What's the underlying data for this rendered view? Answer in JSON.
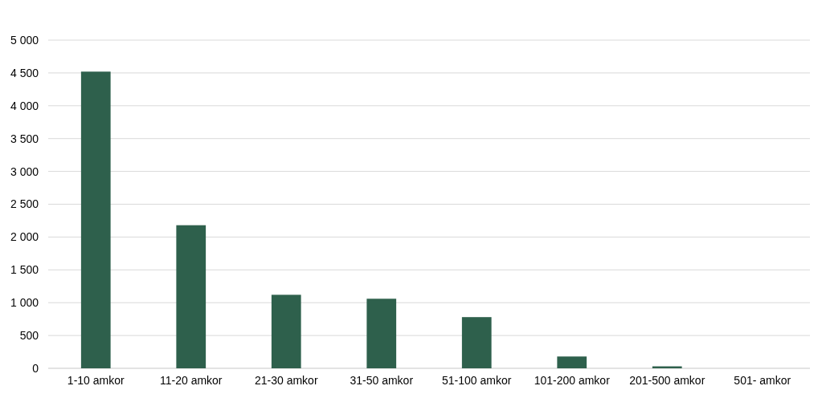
{
  "chart_data": {
    "type": "bar",
    "categories": [
      "1-10 amkor",
      "11-20 amkor",
      "21-30 amkor",
      "31-50 amkor",
      "51-100 amkor",
      "101-200 amkor",
      "201-500 amkor",
      "501- amkor"
    ],
    "values": [
      4520,
      2180,
      1120,
      1060,
      780,
      180,
      30,
      0
    ],
    "color": "#2e604c",
    "ylim": [
      0,
      5000
    ],
    "yticks": [
      {
        "value": 0,
        "label": "0"
      },
      {
        "value": 500,
        "label": "500"
      },
      {
        "value": 1000,
        "label": "1 000"
      },
      {
        "value": 1500,
        "label": "1 500"
      },
      {
        "value": 2000,
        "label": "2 000"
      },
      {
        "value": 2500,
        "label": "2 500"
      },
      {
        "value": 3000,
        "label": "3 000"
      },
      {
        "value": 3500,
        "label": "3 500"
      },
      {
        "value": 4000,
        "label": "4 000"
      },
      {
        "value": 4500,
        "label": "4 500"
      },
      {
        "value": 5000,
        "label": "5 000"
      }
    ],
    "grid": "y"
  }
}
